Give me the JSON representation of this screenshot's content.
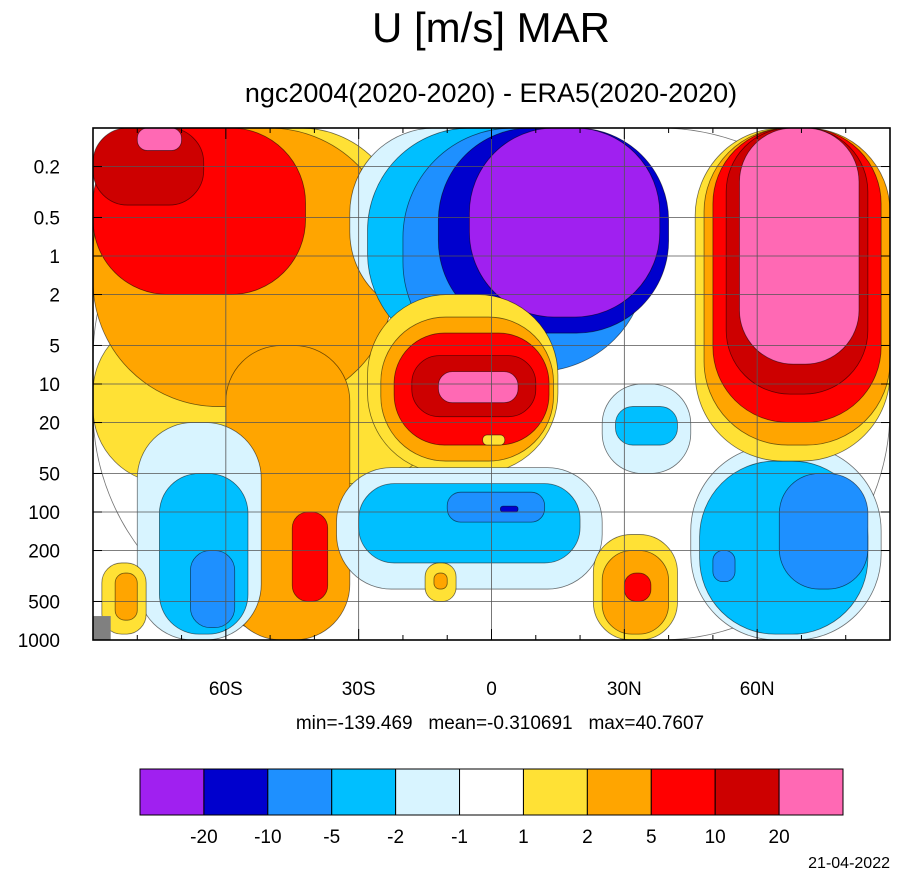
{
  "title": "U [m/s] MAR",
  "subtitle": "ngc2004(2020-2020) - ERA5(2020-2020)",
  "stats": {
    "text": "min=-139.469   mean=-0.310691   max=40.7607",
    "min": -139.469,
    "mean": -0.310691,
    "max": 40.7607
  },
  "date": "21-04-2022",
  "chart_data": {
    "type": "contour",
    "title": "U [m/s] MAR",
    "subtitle": "ngc2004(2020-2020) - ERA5(2020-2020)",
    "x_axis": {
      "scale": "linear",
      "range": [
        -90,
        90
      ],
      "tick_values": [
        -60,
        -30,
        0,
        30,
        60
      ],
      "tick_labels": [
        "60S",
        "30S",
        "0",
        "30N",
        "60N"
      ]
    },
    "y_axis": {
      "scale": "log",
      "inverted": true,
      "range": [
        1000,
        0.1
      ],
      "tick_values": [
        0.2,
        0.5,
        1,
        2,
        5,
        10,
        20,
        50,
        100,
        200,
        500,
        1000
      ],
      "tick_labels": [
        "0.2",
        "0.5",
        "1",
        "2",
        "5",
        "10",
        "20",
        "50",
        "100",
        "200",
        "500",
        "1000"
      ]
    },
    "grid": true,
    "colorbar": {
      "placement": "bottom",
      "levels": [
        -20,
        -10,
        -5,
        -2,
        -1,
        1,
        2,
        5,
        10,
        20
      ],
      "level_labels": [
        "-20",
        "-10",
        "-5",
        "-2",
        "-1",
        "1",
        "2",
        "5",
        "10",
        "20"
      ],
      "colors": [
        "#a020f0",
        "#0000cd",
        "#1e90ff",
        "#00bfff",
        "#d8f4ff",
        "#ffffff",
        "#ffe135",
        "#ffa500",
        "#ff0000",
        "#cd0000",
        "#ff69b4"
      ]
    },
    "missing_color": "#808080",
    "features": [
      {
        "class": 5,
        "lat": [
          -90,
          90
        ],
        "p": [
          1000,
          0.1
        ]
      },
      {
        "class": 6,
        "lat": [
          -90,
          -20
        ],
        "p": [
          0.1,
          6
        ]
      },
      {
        "class": 6,
        "lat": [
          -35,
          -8
        ],
        "p": [
          30,
          200
        ]
      },
      {
        "class": 6,
        "lat": [
          -90,
          -12
        ],
        "p": [
          3,
          60
        ]
      },
      {
        "class": 7,
        "lat": [
          -90,
          -22
        ],
        "p": [
          0.1,
          15
        ]
      },
      {
        "class": 7,
        "lat": [
          -60,
          -32
        ],
        "p": [
          5,
          1000
        ]
      },
      {
        "class": 8,
        "lat": [
          -90,
          -42
        ],
        "p": [
          0.1,
          2
        ]
      },
      {
        "class": 9,
        "lat": [
          -90,
          -65
        ],
        "p": [
          0.1,
          0.4
        ]
      },
      {
        "class": 10,
        "lat": [
          -80,
          -70
        ],
        "p": [
          0.1,
          0.15
        ]
      },
      {
        "class": 8,
        "lat": [
          -45,
          -37
        ],
        "p": [
          100,
          500
        ]
      },
      {
        "class": 4,
        "lat": [
          -80,
          -52
        ],
        "p": [
          20,
          1000
        ]
      },
      {
        "class": 3,
        "lat": [
          -75,
          -55
        ],
        "p": [
          50,
          900
        ]
      },
      {
        "class": 2,
        "lat": [
          -68,
          -58
        ],
        "p": [
          200,
          800
        ]
      },
      {
        "class": 6,
        "lat": [
          -88,
          -78
        ],
        "p": [
          250,
          900
        ]
      },
      {
        "class": 7,
        "lat": [
          -85,
          -80
        ],
        "p": [
          300,
          700
        ]
      },
      {
        "class": 4,
        "lat": [
          -32,
          15
        ],
        "p": [
          0.1,
          3
        ]
      },
      {
        "class": 3,
        "lat": [
          -28,
          25
        ],
        "p": [
          0.1,
          6
        ]
      },
      {
        "class": 2,
        "lat": [
          -20,
          35
        ],
        "p": [
          0.1,
          8
        ]
      },
      {
        "class": 1,
        "lat": [
          -12,
          40
        ],
        "p": [
          0.1,
          4
        ]
      },
      {
        "class": 0,
        "lat": [
          -5,
          38
        ],
        "p": [
          0.1,
          3
        ]
      },
      {
        "class": 6,
        "lat": [
          -28,
          15
        ],
        "p": [
          2,
          50
        ]
      },
      {
        "class": 7,
        "lat": [
          -25,
          14
        ],
        "p": [
          3,
          40
        ]
      },
      {
        "class": 8,
        "lat": [
          -22,
          13
        ],
        "p": [
          4,
          30
        ]
      },
      {
        "class": 9,
        "lat": [
          -18,
          10
        ],
        "p": [
          6,
          18
        ]
      },
      {
        "class": 10,
        "lat": [
          -12,
          6
        ],
        "p": [
          8,
          14
        ]
      },
      {
        "class": 6,
        "lat": [
          -2,
          3
        ],
        "p": [
          25,
          30
        ]
      },
      {
        "class": 4,
        "lat": [
          -35,
          25
        ],
        "p": [
          45,
          400
        ]
      },
      {
        "class": 3,
        "lat": [
          -30,
          20
        ],
        "p": [
          60,
          250
        ]
      },
      {
        "class": 2,
        "lat": [
          -10,
          12
        ],
        "p": [
          70,
          120
        ]
      },
      {
        "class": 1,
        "lat": [
          2,
          6
        ],
        "p": [
          90,
          100
        ]
      },
      {
        "class": 6,
        "lat": [
          -15,
          -8
        ],
        "p": [
          250,
          500
        ]
      },
      {
        "class": 7,
        "lat": [
          -13,
          -10
        ],
        "p": [
          300,
          400
        ]
      },
      {
        "class": 4,
        "lat": [
          25,
          45
        ],
        "p": [
          10,
          50
        ]
      },
      {
        "class": 3,
        "lat": [
          28,
          42
        ],
        "p": [
          15,
          30
        ]
      },
      {
        "class": 6,
        "lat": [
          23,
          42
        ],
        "p": [
          150,
          1000
        ]
      },
      {
        "class": 7,
        "lat": [
          25,
          40
        ],
        "p": [
          200,
          900
        ]
      },
      {
        "class": 8,
        "lat": [
          30,
          36
        ],
        "p": [
          300,
          500
        ]
      },
      {
        "class": 4,
        "lat": [
          45,
          88
        ],
        "p": [
          30,
          1000
        ]
      },
      {
        "class": 3,
        "lat": [
          47,
          85
        ],
        "p": [
          40,
          900
        ]
      },
      {
        "class": 2,
        "lat": [
          50,
          55
        ],
        "p": [
          200,
          350
        ]
      },
      {
        "class": 2,
        "lat": [
          65,
          85
        ],
        "p": [
          50,
          400
        ]
      },
      {
        "class": 6,
        "lat": [
          46,
          90
        ],
        "p": [
          0.1,
          40
        ]
      },
      {
        "class": 7,
        "lat": [
          48,
          90
        ],
        "p": [
          0.1,
          30
        ]
      },
      {
        "class": 8,
        "lat": [
          50,
          88
        ],
        "p": [
          0.1,
          20
        ]
      },
      {
        "class": 9,
        "lat": [
          53,
          85
        ],
        "p": [
          0.1,
          12
        ]
      },
      {
        "class": 10,
        "lat": [
          56,
          83
        ],
        "p": [
          0.1,
          7
        ]
      },
      {
        "class": -1,
        "lat": [
          -90,
          -86
        ],
        "p": [
          650,
          1000
        ]
      }
    ]
  }
}
